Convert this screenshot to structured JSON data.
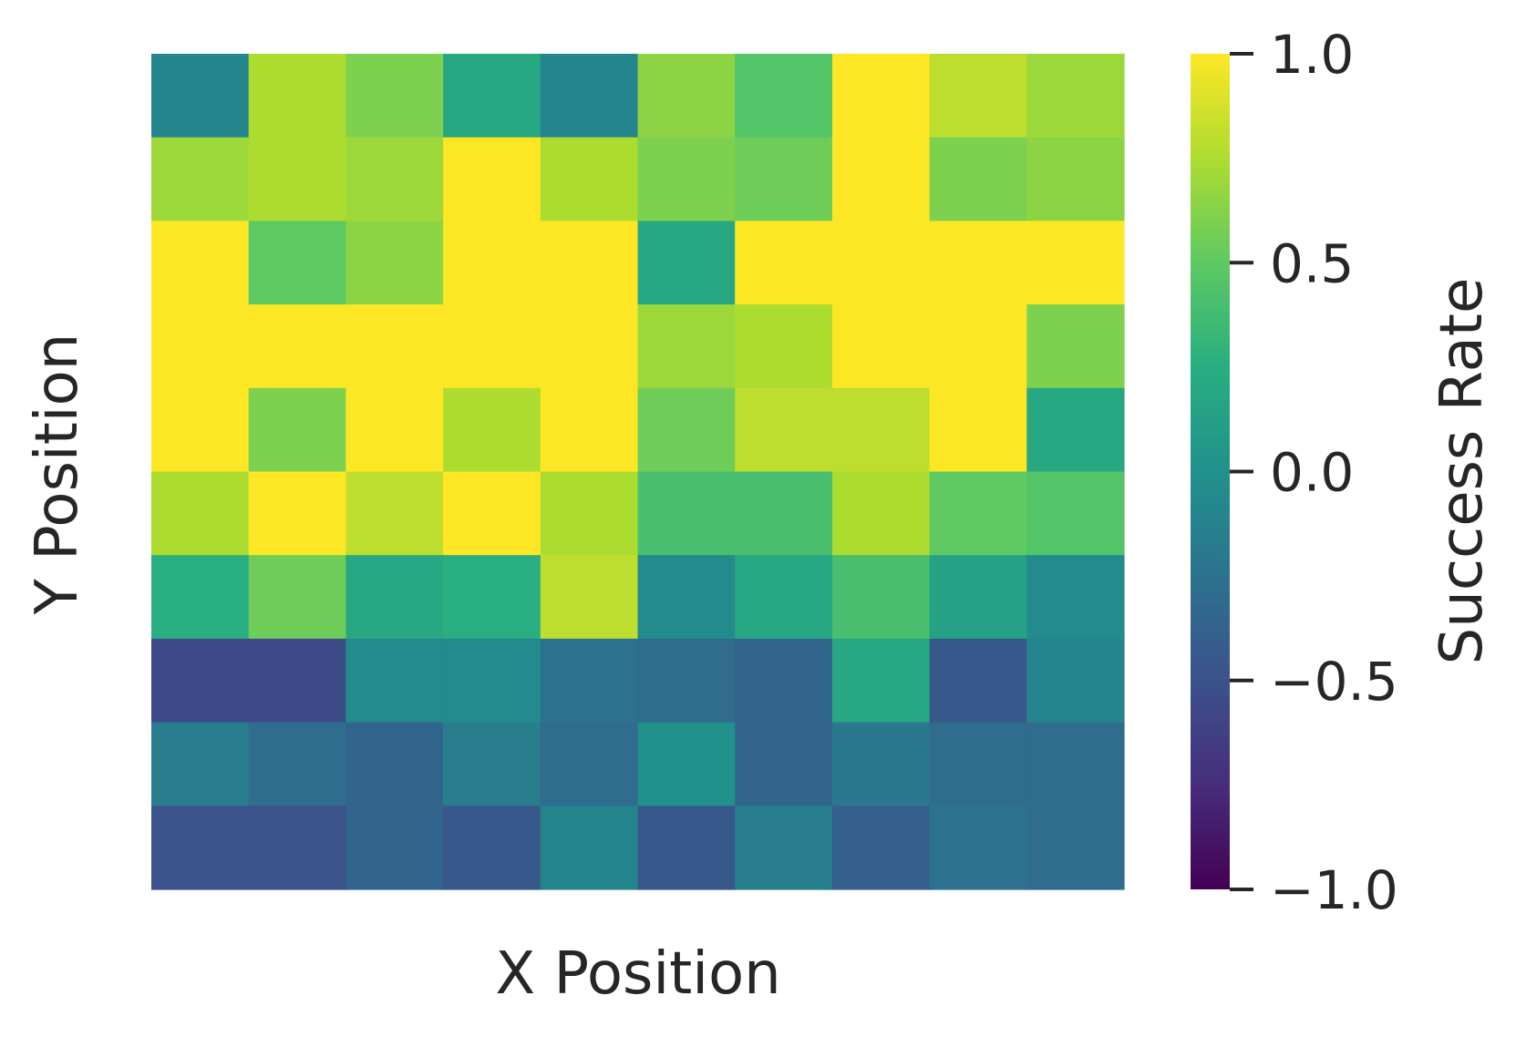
{
  "chart_data": {
    "type": "heatmap",
    "title": "",
    "xlabel": "X Position",
    "ylabel": "Y Position",
    "colorbar": {
      "label": "Success Rate",
      "range": [
        -1.0,
        1.0
      ],
      "ticks": [
        1.0,
        0.5,
        0.0,
        -0.5,
        -1.0
      ],
      "tick_labels": [
        "1.0",
        "0.5",
        "0.0",
        "−0.5",
        "−1.0"
      ],
      "colormap": "viridis"
    },
    "grid": false,
    "rows": 10,
    "cols": 10,
    "values": [
      [
        -0.1,
        0.75,
        0.6,
        0.2,
        -0.1,
        0.65,
        0.45,
        1.0,
        0.8,
        0.7
      ],
      [
        0.7,
        0.75,
        0.7,
        1.0,
        0.75,
        0.6,
        0.55,
        1.0,
        0.6,
        0.65
      ],
      [
        1.0,
        0.5,
        0.65,
        1.0,
        1.0,
        0.2,
        1.0,
        1.0,
        1.0,
        1.0
      ],
      [
        1.0,
        1.0,
        1.0,
        1.0,
        1.0,
        0.7,
        0.75,
        1.0,
        1.0,
        0.6
      ],
      [
        1.0,
        0.6,
        1.0,
        0.75,
        1.0,
        0.55,
        0.8,
        0.8,
        1.0,
        0.2
      ],
      [
        0.75,
        1.0,
        0.8,
        1.0,
        0.75,
        0.4,
        0.4,
        0.75,
        0.5,
        0.45
      ],
      [
        0.25,
        0.55,
        0.2,
        0.25,
        0.8,
        -0.05,
        0.2,
        0.4,
        0.15,
        -0.05
      ],
      [
        -0.55,
        -0.55,
        -0.05,
        -0.05,
        -0.25,
        -0.3,
        -0.35,
        0.2,
        -0.45,
        -0.1
      ],
      [
        -0.15,
        -0.3,
        -0.35,
        -0.15,
        -0.3,
        0.0,
        -0.35,
        -0.2,
        -0.3,
        -0.3
      ],
      [
        -0.5,
        -0.5,
        -0.35,
        -0.45,
        -0.1,
        -0.45,
        -0.15,
        -0.4,
        -0.25,
        -0.3
      ]
    ]
  }
}
